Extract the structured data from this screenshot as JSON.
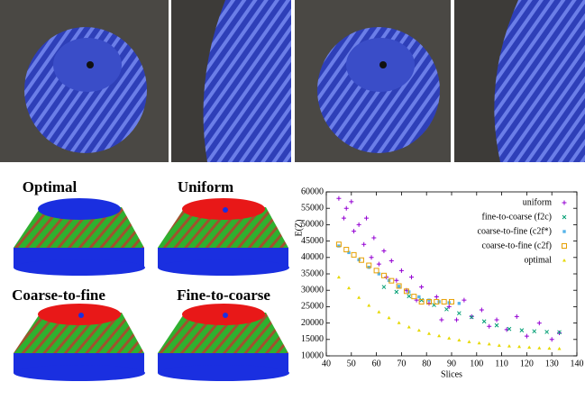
{
  "labels": [
    "Optimal",
    "Uniform",
    "Coarse-to-fine",
    "Fine-to-coarse"
  ],
  "chart_data": {
    "type": "scatter",
    "xlabel": "Slices",
    "ylabel": "E(Z)",
    "xlim": [
      40,
      140
    ],
    "ylim": [
      10000,
      60000
    ],
    "xticks": [
      40,
      50,
      60,
      70,
      80,
      90,
      100,
      110,
      120,
      130,
      140
    ],
    "yticks": [
      10000,
      15000,
      20000,
      25000,
      30000,
      35000,
      40000,
      45000,
      50000,
      55000,
      60000
    ],
    "legend": "upper right",
    "series": [
      {
        "name": "uniform",
        "color": "#9400d3",
        "marker": "plus",
        "x": [
          45,
          47,
          48,
          50,
          51,
          53,
          55,
          56,
          58,
          59,
          61,
          63,
          64,
          66,
          68,
          70,
          72,
          74,
          76,
          78,
          81,
          84,
          86,
          89,
          92,
          95,
          98,
          102,
          105,
          108,
          112,
          116,
          120,
          125,
          130,
          133
        ],
        "values": [
          58000,
          52000,
          55000,
          57000,
          48000,
          50000,
          44000,
          52000,
          40000,
          46000,
          38000,
          42000,
          34000,
          39000,
          33000,
          36000,
          30000,
          34000,
          27000,
          31000,
          26000,
          28000,
          21000,
          25000,
          21000,
          27000,
          22000,
          24000,
          19000,
          21000,
          18000,
          22000,
          16000,
          20000,
          15000,
          17000
        ]
      },
      {
        "name": "fine-to-coarse (f2c)",
        "color": "#009e73",
        "marker": "cross",
        "x": [
          63,
          68,
          73,
          78,
          83,
          88,
          93,
          98,
          103,
          108,
          113,
          118,
          123,
          128,
          133
        ],
        "values": [
          31000,
          29500,
          28200,
          27000,
          25500,
          24200,
          23000,
          21800,
          20500,
          19300,
          18200,
          17800,
          17500,
          17300,
          17200
        ]
      },
      {
        "name": "coarse-to-fine (c2f*)",
        "color": "#56b4e9",
        "marker": "dot",
        "x": [
          45,
          49,
          53,
          57,
          61,
          65,
          69,
          73,
          77,
          81,
          85,
          89,
          93
        ],
        "values": [
          43500,
          41500,
          39300,
          37000,
          35000,
          33000,
          31200,
          29500,
          28000,
          27000,
          26500,
          26200,
          26000
        ]
      },
      {
        "name": "coarse-to-fine (c2f)",
        "color": "#e69f00",
        "marker": "square",
        "x": [
          45,
          48,
          51,
          54,
          57,
          60,
          63,
          66,
          69,
          72,
          75,
          78,
          81,
          84,
          87,
          90
        ],
        "values": [
          44000,
          42400,
          40800,
          39200,
          37600,
          36000,
          34500,
          32900,
          31300,
          29700,
          28100,
          26500,
          26500,
          26500,
          26500,
          26500
        ]
      },
      {
        "name": "optimal",
        "color": "#e6d800",
        "marker": "triangle",
        "x": [
          45,
          49,
          53,
          57,
          61,
          65,
          69,
          73,
          77,
          81,
          85,
          89,
          93,
          97,
          101,
          105,
          109,
          113,
          117,
          121,
          125,
          129,
          133
        ],
        "values": [
          34000,
          30700,
          27800,
          25400,
          23400,
          21600,
          20100,
          18800,
          17800,
          16800,
          16100,
          15400,
          14800,
          14300,
          13900,
          13600,
          13200,
          13000,
          12800,
          12600,
          12400,
          12300,
          12200
        ]
      }
    ]
  }
}
